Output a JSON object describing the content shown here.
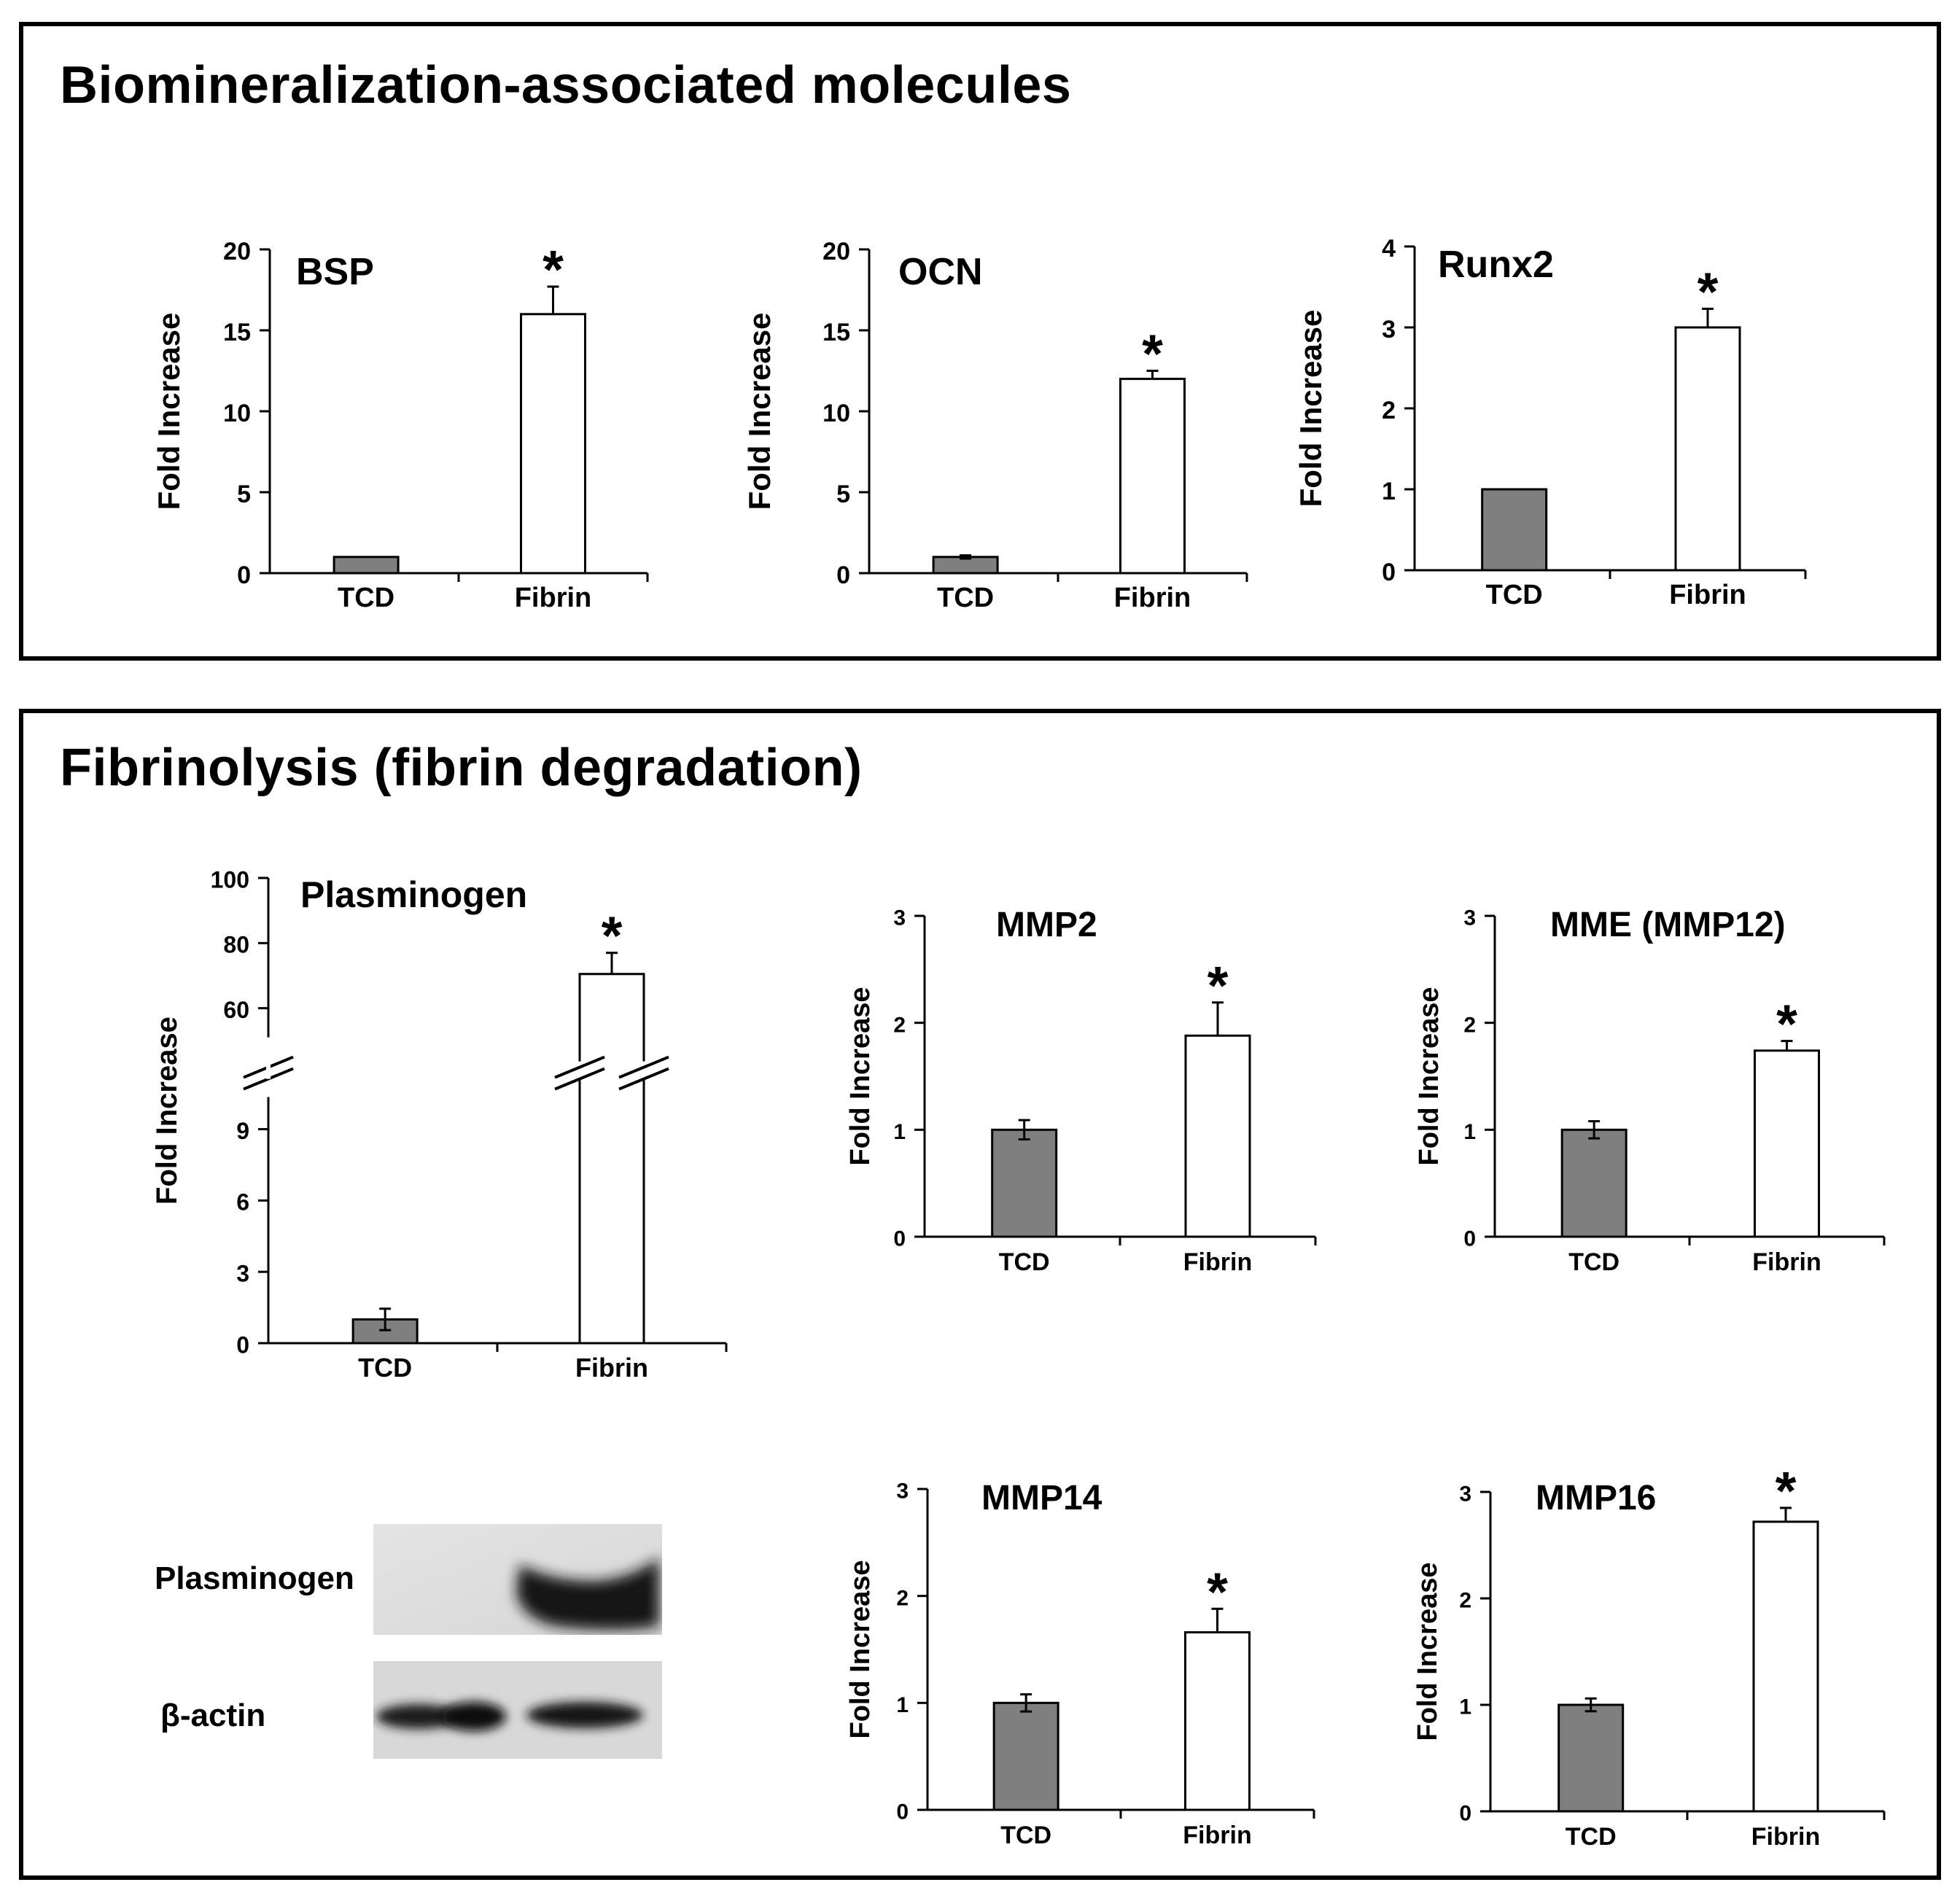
{
  "sections": {
    "top_title": "Biomineralization-associated molecules",
    "bottom_title": "Fibrinolysis (fibrin degradation)"
  },
  "colors": {
    "tcd_bar": "#7f7f7f",
    "fibrin_bar": "#ffffff",
    "axis": "#000000"
  },
  "chart_data": [
    {
      "id": "bsp",
      "type": "bar",
      "title": "BSP",
      "ylabel": "Fold Increase",
      "categories": [
        "TCD",
        "Fibrin"
      ],
      "values": [
        1.0,
        16.0
      ],
      "errors": [
        0,
        1.7
      ],
      "ylim": [
        0,
        20
      ],
      "yticks": [
        0,
        5,
        10,
        15,
        20
      ],
      "significance": [
        "",
        "*"
      ]
    },
    {
      "id": "ocn",
      "type": "bar",
      "title": "OCN",
      "ylabel": "Fold Increase",
      "categories": [
        "TCD",
        "Fibrin"
      ],
      "values": [
        1.0,
        12.0
      ],
      "errors": [
        0.1,
        0.5
      ],
      "ylim": [
        0,
        20
      ],
      "yticks": [
        0,
        5,
        10,
        15,
        20
      ],
      "significance": [
        "",
        "*"
      ]
    },
    {
      "id": "runx2",
      "type": "bar",
      "title": "Runx2",
      "ylabel": "Fold Increase",
      "categories": [
        "TCD",
        "Fibrin"
      ],
      "values": [
        1.0,
        3.0
      ],
      "errors": [
        0,
        0.23
      ],
      "ylim": [
        0,
        4
      ],
      "yticks": [
        0,
        1,
        2,
        3,
        4
      ],
      "significance": [
        "",
        "*"
      ]
    },
    {
      "id": "plasminogen",
      "type": "bar",
      "title": "Plasminogen",
      "ylabel": "Fold Increase",
      "categories": [
        "TCD",
        "Fibrin"
      ],
      "values": [
        1.0,
        70.5
      ],
      "errors": [
        0.45,
        6.5
      ],
      "ylim": [
        0,
        100
      ],
      "axis_break": [
        9,
        60
      ],
      "yticks": [
        0,
        3,
        6,
        9,
        60,
        80,
        100
      ],
      "significance": [
        "",
        "*"
      ]
    },
    {
      "id": "mmp2",
      "type": "bar",
      "title": "MMP2",
      "ylabel": "Fold Increase",
      "categories": [
        "TCD",
        "Fibrin"
      ],
      "values": [
        1.0,
        1.88
      ],
      "errors": [
        0.09,
        0.31
      ],
      "ylim": [
        0,
        3
      ],
      "yticks": [
        0,
        1,
        2,
        3
      ],
      "significance": [
        "",
        "*"
      ]
    },
    {
      "id": "mme",
      "type": "bar",
      "title": "MME (MMP12)",
      "ylabel": "Fold Increase",
      "categories": [
        "TCD",
        "Fibrin"
      ],
      "values": [
        1.0,
        1.74
      ],
      "errors": [
        0.08,
        0.09
      ],
      "ylim": [
        0,
        3
      ],
      "yticks": [
        0,
        1,
        2,
        3
      ],
      "significance": [
        "",
        "*"
      ]
    },
    {
      "id": "mmp14",
      "type": "bar",
      "title": "MMP14",
      "ylabel": "Fold Increase",
      "categories": [
        "TCD",
        "Fibrin"
      ],
      "values": [
        1.0,
        1.66
      ],
      "errors": [
        0.08,
        0.22
      ],
      "ylim": [
        0,
        3
      ],
      "yticks": [
        0,
        1,
        2,
        3
      ],
      "significance": [
        "",
        "*"
      ]
    },
    {
      "id": "mmp16",
      "type": "bar",
      "title": "MMP16",
      "ylabel": "Fold Increase",
      "categories": [
        "TCD",
        "Fibrin"
      ],
      "values": [
        1.0,
        2.72
      ],
      "errors": [
        0.06,
        0.13
      ],
      "ylim": [
        0,
        3
      ],
      "yticks": [
        0,
        1,
        2,
        3
      ],
      "significance": [
        "",
        "*"
      ]
    }
  ],
  "western_blot": {
    "rows": [
      {
        "label": "Plasminogen",
        "tcd_band_intensity": 0.0,
        "fibrin_band_intensity": 0.95
      },
      {
        "label": "β-actin",
        "tcd_band_intensity": 0.9,
        "fibrin_band_intensity": 0.88
      }
    ]
  }
}
